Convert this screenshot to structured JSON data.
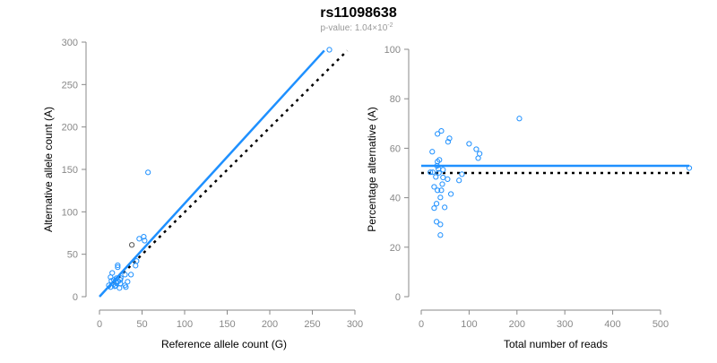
{
  "title": "rs11098638",
  "subtitle_prefix": "p-value: 1.04×10",
  "subtitle_exp": "-2",
  "colors": {
    "points": "#1E90FF",
    "highlight": "#555555",
    "fit": "#1E90FF",
    "reference": "#000000"
  },
  "chart_data": [
    {
      "type": "scatter",
      "xlabel": "Reference allele count (G)",
      "ylabel": "Alternative allele count (A)",
      "xlim": [
        0,
        300
      ],
      "ylim": [
        0,
        300
      ],
      "xticks": [
        "0",
        "50",
        "100",
        "150",
        "200",
        "250",
        "300"
      ],
      "yticks": [
        "0",
        "50",
        "100",
        "150",
        "200",
        "250",
        "300"
      ],
      "points": [
        [
          270,
          291
        ],
        [
          57,
          146.5
        ],
        [
          52,
          70.7
        ],
        [
          46.7,
          68.3
        ],
        [
          53,
          66
        ],
        [
          43.5,
          42
        ],
        [
          42.4,
          36.6
        ],
        [
          21.4,
          37
        ],
        [
          21.4,
          34.7
        ],
        [
          15,
          28
        ],
        [
          30,
          26
        ],
        [
          37,
          26
        ],
        [
          13,
          23
        ],
        [
          20,
          21.8
        ],
        [
          33,
          17.6
        ],
        [
          24.5,
          19.7
        ],
        [
          11,
          13.4
        ],
        [
          24.5,
          15.5
        ],
        [
          18,
          12.3
        ],
        [
          31,
          11.3
        ],
        [
          23.5,
          10.2
        ],
        [
          30,
          13.4
        ],
        [
          14,
          18.7
        ],
        [
          17,
          19.7
        ],
        [
          13,
          11.3
        ],
        [
          17,
          15
        ],
        [
          20,
          16
        ],
        [
          22,
          18
        ],
        [
          19,
          13
        ],
        [
          25,
          22
        ]
      ],
      "highlight_points": [
        [
          38,
          61
        ]
      ],
      "fit_line": {
        "from": [
          0,
          0
        ],
        "to": [
          264,
          290
        ]
      },
      "reference_line": {
        "from": [
          10,
          10
        ],
        "to": [
          291,
          290
        ]
      }
    },
    {
      "type": "scatter",
      "xlabel": "Total number of reads",
      "ylabel": "Percentage alternative (A)",
      "xlim": [
        0,
        560
      ],
      "ylim": [
        0,
        100
      ],
      "xticks": [
        "0",
        "100",
        "200",
        "300",
        "400",
        "500"
      ],
      "yticks": [
        "0",
        "20",
        "40",
        "60",
        "80",
        "100"
      ],
      "points": [
        [
          205,
          72
        ],
        [
          560,
          52
        ],
        [
          42,
          67
        ],
        [
          34,
          65.8
        ],
        [
          59,
          64
        ],
        [
          56,
          62.6
        ],
        [
          100,
          61.8
        ],
        [
          115,
          59.6
        ],
        [
          122,
          57.8
        ],
        [
          119,
          56
        ],
        [
          23,
          58.6
        ],
        [
          38,
          55.3
        ],
        [
          34,
          54.6
        ],
        [
          33,
          52.9
        ],
        [
          36,
          51.6
        ],
        [
          45.5,
          51.3
        ],
        [
          19,
          50.3
        ],
        [
          24,
          50.3
        ],
        [
          37,
          50.1
        ],
        [
          85,
          49.5
        ],
        [
          30.5,
          48.4
        ],
        [
          45.5,
          48.2
        ],
        [
          55,
          47.5
        ],
        [
          79,
          47
        ],
        [
          44,
          45.5
        ],
        [
          27,
          44.4
        ],
        [
          34,
          43
        ],
        [
          42,
          43
        ],
        [
          62,
          41.5
        ],
        [
          40,
          40.1
        ],
        [
          32,
          37.6
        ],
        [
          27,
          35.8
        ],
        [
          49,
          36.1
        ],
        [
          32,
          30.3
        ],
        [
          40,
          29.2
        ],
        [
          40,
          24.9
        ]
      ],
      "fit_line": {
        "from": [
          0,
          52.9
        ],
        "to": [
          560,
          52.9
        ]
      },
      "reference_line": {
        "from": [
          0,
          50
        ],
        "to": [
          560,
          50
        ]
      }
    }
  ]
}
